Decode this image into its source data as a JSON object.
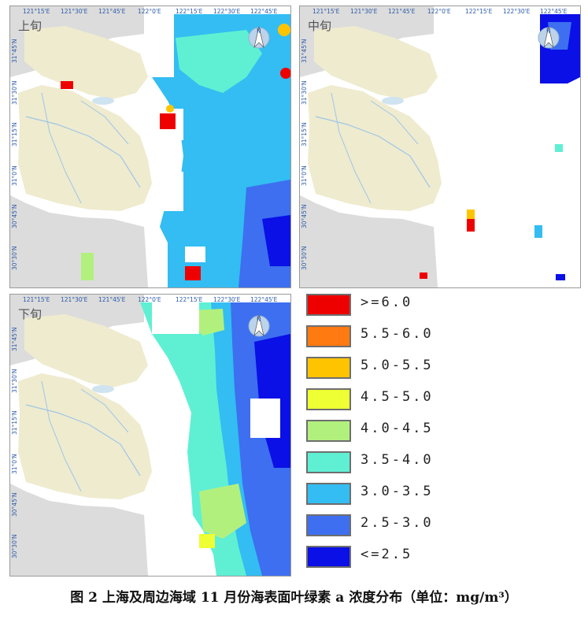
{
  "lon_labels": [
    "121°15'E",
    "121°30'E",
    "121°45'E",
    "122°0'E",
    "122°15'E",
    "122°30'E",
    "122°45'E"
  ],
  "lat_labels": [
    "31°45'N",
    "31°30'N",
    "31°15'N",
    "31°0'N",
    "30°45'N",
    "30°30'N"
  ],
  "north_label": "N",
  "panels": [
    {
      "id": "p1",
      "title": "上旬"
    },
    {
      "id": "p2",
      "title": "中旬"
    },
    {
      "id": "p3",
      "title": "下旬"
    }
  ],
  "legend": [
    {
      "label": ">=6.0",
      "color": "#ee0000"
    },
    {
      "label": "5.5-6.0",
      "color": "#ff7a10"
    },
    {
      "label": "5.0-5.5",
      "color": "#ffc400"
    },
    {
      "label": "4.5-5.0",
      "color": "#eeff33"
    },
    {
      "label": "4.0-4.5",
      "color": "#b2f07e"
    },
    {
      "label": "3.5-4.0",
      "color": "#5ff0d4"
    },
    {
      "label": "3.0-3.5",
      "color": "#33bdf2"
    },
    {
      "label": "2.5-3.0",
      "color": "#3d6ff0"
    },
    {
      "label": "<=2.5",
      "color": "#0a10e6"
    }
  ],
  "caption": "图 2  上海及周边海域 11 月份海表面叶绿素 a 浓度分布（单位：mg/m³）",
  "colors": {
    "land": "#efebcf",
    "land_outer": "#dcdcdc",
    "water_line": "#9fc6e6",
    "frame": "#9a9a9a"
  }
}
